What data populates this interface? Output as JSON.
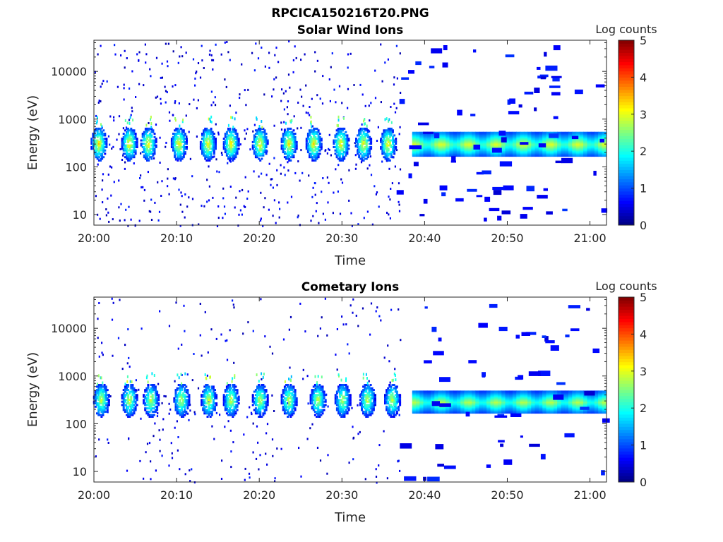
{
  "figure": {
    "filename": "RPCICA150216T20.PNG"
  },
  "chart_data": [
    {
      "type": "heatmap",
      "title": "Solar Wind Ions",
      "xlabel": "Time",
      "ylabel": "Energy (eV)",
      "yscale": "log",
      "ylim": [
        6,
        45000
      ],
      "xlim": [
        "20:00",
        "21:02"
      ],
      "xticks": [
        "20:00",
        "20:10",
        "20:20",
        "20:30",
        "20:40",
        "20:50",
        "21:00"
      ],
      "yticks": [
        "10",
        "100",
        "1000",
        "10000"
      ],
      "colorbar": {
        "label": "Log counts",
        "range": [
          0,
          5
        ],
        "ticks": [
          "0",
          "1",
          "2",
          "3",
          "4",
          "5"
        ]
      },
      "bursts_min": [
        0.5,
        4.2,
        6.5,
        10.2,
        13.7,
        16.5,
        20.0,
        23.5,
        26.5,
        29.8,
        32.5,
        35.5
      ],
      "burst_energy_eV": 320,
      "burst_peak_log_counts": 3.3,
      "band_start_min": 38.5,
      "band_end_min": 61.5,
      "band_energy_eV": [
        180,
        550
      ],
      "band_peak_log_counts": 3.0
    },
    {
      "type": "heatmap",
      "title": "Cometary Ions",
      "xlabel": "Time",
      "ylabel": "Energy (eV)",
      "yscale": "log",
      "ylim": [
        6,
        45000
      ],
      "xlim": [
        "20:00",
        "21:02"
      ],
      "xticks": [
        "20:00",
        "20:10",
        "20:20",
        "20:30",
        "20:40",
        "20:50",
        "21:00"
      ],
      "yticks": [
        "10",
        "100",
        "1000",
        "10000"
      ],
      "colorbar": {
        "label": "Log counts",
        "range": [
          0,
          5
        ],
        "ticks": [
          "0",
          "1",
          "2",
          "3",
          "4",
          "5"
        ]
      },
      "bursts_min": [
        0.8,
        4.2,
        6.8,
        10.5,
        13.8,
        16.5,
        20.0,
        23.5,
        27.0,
        30.0,
        33.0,
        36.0
      ],
      "burst_energy_eV": 330,
      "burst_peak_log_counts": 3.0,
      "band_start_min": 38.5,
      "band_end_min": 61.5,
      "band_energy_eV": [
        180,
        500
      ],
      "band_peak_log_counts": 2.8
    }
  ]
}
